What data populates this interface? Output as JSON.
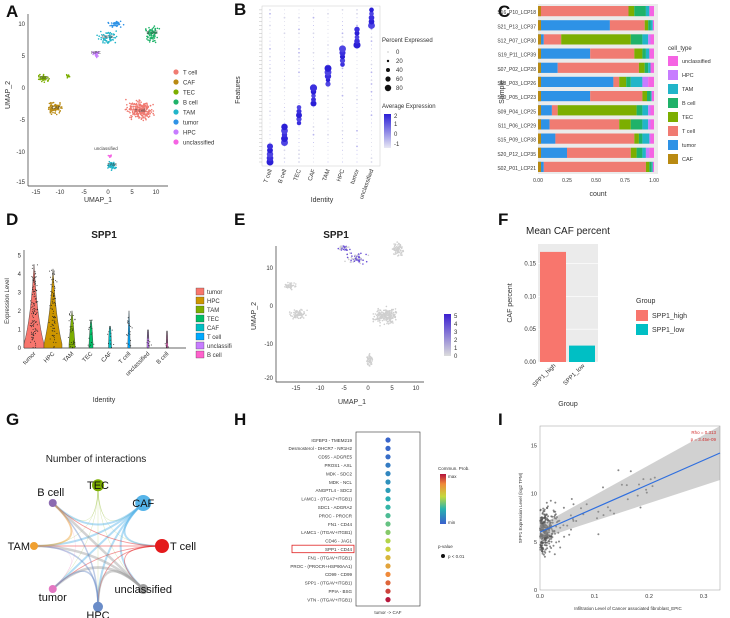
{
  "panel_letters": [
    "A",
    "B",
    "C",
    "D",
    "E",
    "F",
    "G",
    "H",
    "I"
  ],
  "colors": {
    "T cell": "#F07B72",
    "CAF": "#B98A12",
    "TEC": "#7CAE00",
    "B cell": "#1FB269",
    "TAM": "#21B5C9",
    "tumor": "#2E92E6",
    "HPC": "#C77CFF",
    "unclassified": "#F564E3"
  },
  "A": {
    "xlabel": "UMAP_1",
    "ylabel": "UMAP_2",
    "xticks": [
      "-15",
      "-10",
      "-5",
      "0",
      "5",
      "10"
    ],
    "yticks": [
      "10",
      "5",
      "0",
      "-5",
      "-10",
      "-15"
    ],
    "legend": [
      "T cell",
      "CAF",
      "TEC",
      "B cell",
      "TAM",
      "tumor",
      "HPC",
      "unclassified"
    ],
    "cluster_labels": [
      "T cell",
      "CAF",
      "TEC",
      "B cell",
      "TAM",
      "tumor",
      "HPC",
      "unclassified"
    ]
  },
  "B": {
    "xlabel": "Identity",
    "ylabel": "Features",
    "groups": [
      "T cell",
      "B cell",
      "TEC",
      "CAF",
      "TAM",
      "HPC",
      "tumor",
      "unclassified"
    ],
    "legend_pct_title": "Percent Expressed",
    "legend_pct_values": [
      "0",
      "20",
      "40",
      "60",
      "80"
    ],
    "legend_avg_title": "Average Expression",
    "legend_avg_ticks": [
      "2",
      "1",
      "0",
      "-1"
    ]
  },
  "C": {
    "xlabel": "count",
    "ylabel": "Sample",
    "xticks": [
      "0.00",
      "0.25",
      "0.50",
      "0.75",
      "1.00"
    ],
    "legend_title": "cell_type",
    "legend": [
      "unclassified",
      "HPC",
      "TAM",
      "B cell",
      "TEC",
      "T cell",
      "tumor",
      "CAF"
    ],
    "chart_data": {
      "type": "bar",
      "orientation": "horizontal-stacked",
      "categories": [
        "S16_P10_LCP18",
        "S21_P13_LCP37",
        "S12_P07_LCP30",
        "S19_P11_LCP39",
        "S07_P02_LCP28",
        "S08_P03_LCP26",
        "S10_P05_LCP23",
        "S09_P04_LCP25",
        "S11_P06_LCP29",
        "S15_P09_LCP38",
        "S20_P12_LCP35",
        "S02_P01_LCP21"
      ],
      "stack_order": [
        "CAF",
        "tumor",
        "T cell",
        "TEC",
        "B cell",
        "TAM",
        "HPC",
        "unclassified"
      ],
      "series": [
        {
          "name": "CAF",
          "values": [
            0,
            0,
            0,
            0,
            0,
            0,
            0,
            0,
            0,
            0,
            0,
            0
          ]
        },
        {
          "name": "tumor",
          "values": [
            0,
            0.62,
            0.05,
            0.45,
            0.17,
            0.65,
            0.45,
            0.12,
            0.1,
            0.15,
            0.25,
            0.05
          ]
        },
        {
          "name": "T cell",
          "values": [
            0.78,
            0.3,
            0.15,
            0.38,
            0.7,
            0.05,
            0.45,
            0.05,
            0.6,
            0.68,
            0.55,
            0.88
          ]
        },
        {
          "name": "TEC",
          "values": [
            0.05,
            0.03,
            0.6,
            0.07,
            0.05,
            0.06,
            0.04,
            0.68,
            0.1,
            0.04,
            0.05,
            0.03
          ]
        },
        {
          "name": "B cell",
          "values": [
            0.1,
            0.02,
            0.1,
            0.03,
            0.03,
            0.04,
            0.03,
            0.05,
            0.1,
            0.03,
            0.05,
            0.02
          ]
        },
        {
          "name": "TAM",
          "values": [
            0.03,
            0.02,
            0.05,
            0.03,
            0.02,
            0.1,
            0.01,
            0.05,
            0.05,
            0.06,
            0.03,
            0.01
          ]
        },
        {
          "name": "HPC",
          "values": [
            0,
            0,
            0.02,
            0,
            0,
            0.05,
            0,
            0.02,
            0.02,
            0.01,
            0.03,
            0
          ]
        },
        {
          "name": "unclassified",
          "values": [
            0.04,
            0.01,
            0.03,
            0.04,
            0.03,
            0.05,
            0.02,
            0.03,
            0.03,
            0.03,
            0.04,
            0.01
          ]
        }
      ],
      "xlabel": "count",
      "ylabel": "Sample",
      "xlim": [
        0,
        1
      ]
    }
  },
  "D": {
    "title": "SPP1",
    "xlabel": "Identity",
    "ylabel": "Expression Level",
    "yticks": [
      "0",
      "1",
      "2",
      "3",
      "4",
      "5"
    ],
    "groups": [
      "tumor",
      "HPC",
      "TAM",
      "TEC",
      "CAF",
      "T cell",
      "unclassified",
      "B cell"
    ],
    "legend": [
      "tumor",
      "HPC",
      "TAM",
      "TEC",
      "CAF",
      "T cell",
      "unclassified",
      "B cell"
    ]
  },
  "E": {
    "title": "SPP1",
    "xlabel": "UMAP_1",
    "ylabel": "UMAP_2",
    "xticks": [
      "-15",
      "-10",
      "-5",
      "0",
      "5",
      "10"
    ],
    "yticks": [
      "10",
      "0",
      "-10",
      "-20"
    ],
    "scale_ticks": [
      "5",
      "4",
      "3",
      "2",
      "1",
      "0"
    ]
  },
  "F": {
    "chart_data": {
      "type": "bar",
      "title": "Mean CAF percent",
      "categories": [
        "SPP1_high",
        "SPP1_low"
      ],
      "values": [
        0.168,
        0.025
      ],
      "xlabel": "Group",
      "ylabel": "CAF percent",
      "ylim": [
        0,
        0.18
      ],
      "yticks": [
        "0.00",
        "0.05",
        "0.10",
        "0.15"
      ]
    },
    "legend_title": "Group",
    "legend": [
      "SPP1_high",
      "SPP1_low"
    ],
    "colors": [
      "#F8766D",
      "#00BFC4"
    ]
  },
  "G": {
    "title": "Number of interactions",
    "nodes": [
      "TEC",
      "CAF",
      "T cell",
      "unclassified",
      "HPC",
      "tumor",
      "TAM",
      "B cell"
    ]
  },
  "H": {
    "chart_data": {
      "type": "scatter",
      "x_category": "tumor -> CAF",
      "pairs": [
        "IGFBP3 - TMEM219",
        "Desmosterol - DHCR7 - NR1H2",
        "CD55 - ADGRE5",
        "PROS1 - AXL",
        "MDK - SDC2",
        "MDK - NCL",
        "ANGPTL4 - SDC2",
        "LAMC1 - (ITGA7+ITGB1)",
        "SDC1 - ADGRA2",
        "PROC - PROCR",
        "FN1 - CD44",
        "LAMC1 - (ITGAV+ITGB1)",
        "CD46 - JAG1",
        "SPP1 - CD44",
        "FN1 - (ITGAV+ITGB1)",
        "PROC - (PROCR+HSP90AA1)",
        "CD99 - CD99",
        "SPP1 - (ITGAV+ITGB1)",
        "PPIA - BSG",
        "VTN - (ITGAV+ITGB1)"
      ],
      "prob": [
        0.02,
        0.03,
        0.05,
        0.1,
        0.14,
        0.18,
        0.22,
        0.28,
        0.32,
        0.36,
        0.4,
        0.45,
        0.52,
        0.58,
        0.66,
        0.72,
        0.8,
        0.86,
        0.92,
        0.99
      ]
    },
    "highlight": "SPP1 - CD44",
    "legend_title": "Commun. Prob.",
    "legend_max": "max",
    "legend_min": "min",
    "pvalue_title": "p-value",
    "pvalue_entry": "p < 0.01",
    "xlabel": "tumor -> CAF"
  },
  "I": {
    "xlabel": "Infiltration Level of Cancer associated fibroblast_EPIC",
    "ylabel": "SPP1 Expression Level (log2 TPM)",
    "xticks": [
      "0.0",
      "0.1",
      "0.2",
      "0.3"
    ],
    "yticks": [
      "0",
      "5",
      "10",
      "15"
    ],
    "rho": "Rho = 0.313",
    "p": "p = 3.45e-09",
    "chart_data": {
      "type": "scatter",
      "xlim": [
        0,
        0.33
      ],
      "ylim": [
        0,
        17
      ],
      "fit": {
        "x": [
          0.0,
          0.33
        ],
        "y": [
          6.0,
          14.2
        ]
      }
    }
  }
}
